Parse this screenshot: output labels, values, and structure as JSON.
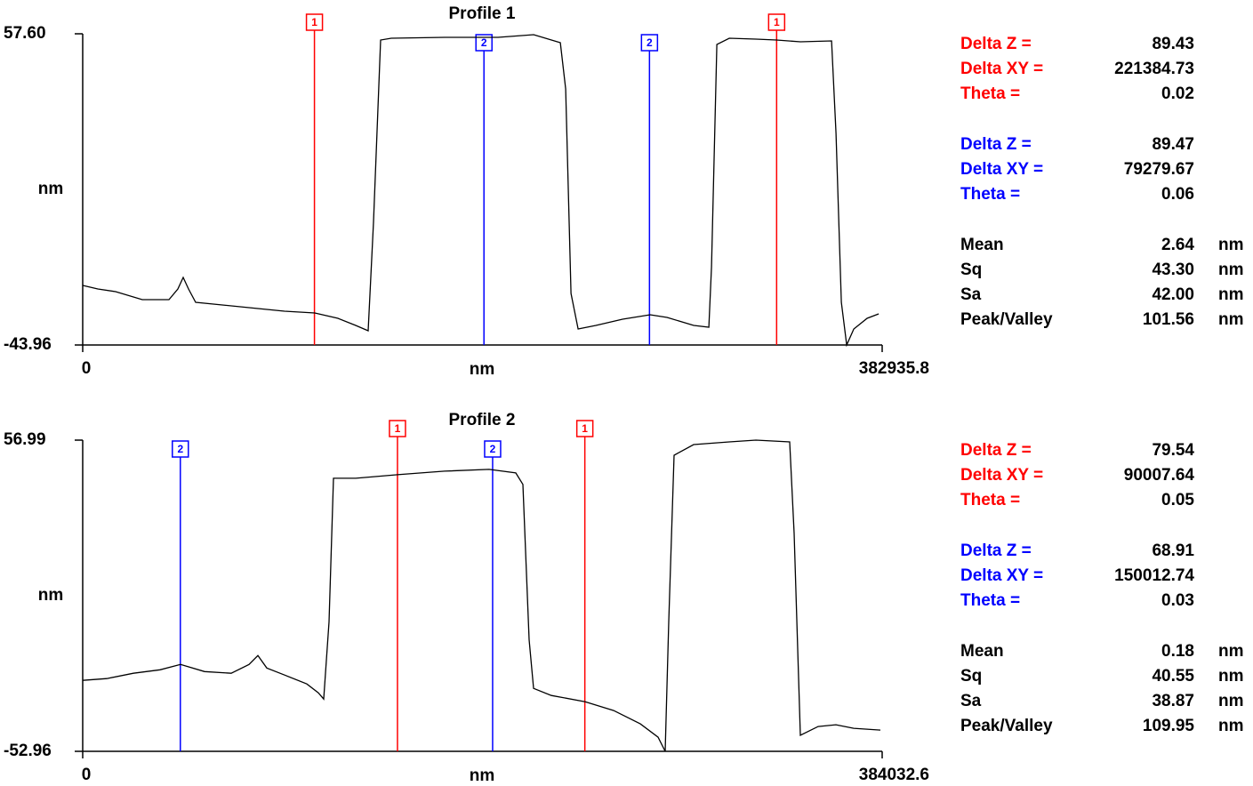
{
  "chart_data": [
    {
      "type": "line",
      "title": "Profile 1",
      "xlabel": "nm",
      "ylabel": "nm",
      "xlim": [
        0,
        382935.8
      ],
      "xticks": [
        0,
        382935.8
      ],
      "ylim": [
        -43.96,
        57.6
      ],
      "yticks": [
        {
          "value": -43.96,
          "label": "-43.96"
        },
        {
          "value": 57.6,
          "label": "57.60"
        }
      ],
      "x": [
        0,
        7242,
        15762,
        28542,
        41322,
        45582,
        48138,
        50694,
        54102,
        66882,
        83922,
        96702,
        111186,
        122262,
        130782,
        136746,
        139302,
        142710,
        147822,
        173382,
        198942,
        215982,
        228762,
        231318,
        233874,
        237282,
        245802,
        258582,
        271788,
        279882,
        292662,
        299904,
        301182,
        303738,
        309702,
        322482,
        332280,
        343782,
        358692,
        360822,
        363378,
        365934,
        369342,
        375732,
        381270
      ],
      "series": [
        {
          "color": "#000000",
          "values": [
            -24.52,
            -25.68,
            -26.55,
            -29.16,
            -29.16,
            -25.68,
            -21.91,
            -25.68,
            -30.03,
            -30.9,
            -32.06,
            -32.93,
            -33.51,
            -35.25,
            -37.58,
            -39.32,
            -3.92,
            55.57,
            56.15,
            56.44,
            56.44,
            57.31,
            54.7,
            39.61,
            -27.13,
            -38.74,
            -37.58,
            -35.54,
            -34.09,
            -34.96,
            -37.58,
            -38.16,
            -18.42,
            54.12,
            56.15,
            55.86,
            55.57,
            54.99,
            55.28,
            25.1,
            -30.03,
            -43.96,
            -38.74,
            -35.25,
            -33.8
          ]
        }
      ],
      "cursors": [
        {
          "label": "1",
          "color": "#ff0000",
          "x": [
            111000,
            332385
          ]
        },
        {
          "label": "2",
          "color": "#0000ff",
          "x": [
            192200,
            271480
          ]
        }
      ],
      "stats": [
        {
          "color": "#ff0000",
          "rows": [
            {
              "label": "Delta Z =",
              "value": "89.43"
            },
            {
              "label": "Delta XY =",
              "value": "221384.73"
            },
            {
              "label": "Theta =",
              "value": "0.02"
            }
          ]
        },
        {
          "color": "#0000ff",
          "rows": [
            {
              "label": "Delta Z =",
              "value": "89.47"
            },
            {
              "label": "Delta XY =",
              "value": "79279.67"
            },
            {
              "label": "Theta =",
              "value": "0.06"
            }
          ]
        },
        {
          "color": "#000000",
          "rows": [
            {
              "label": "Mean",
              "value": "2.64",
              "unit": "nm"
            },
            {
              "label": "Sq",
              "value": "43.30",
              "unit": "nm"
            },
            {
              "label": "Sa",
              "value": "42.00",
              "unit": "nm"
            },
            {
              "label": "Peak/Valley",
              "value": "101.56",
              "unit": "nm"
            }
          ]
        }
      ]
    },
    {
      "type": "line",
      "title": "Profile 2",
      "xlabel": "nm",
      "ylabel": "nm",
      "xlim": [
        0,
        384032.6
      ],
      "xticks": [
        0,
        384032.6
      ],
      "ylim": [
        -52.96,
        56.99
      ],
      "yticks": [
        -52.96,
        56.99
      ],
      "x": [
        0,
        11534,
        24349,
        37165,
        46990,
        58524,
        71339,
        79883,
        84154,
        88426,
        96970,
        107649,
        113203,
        115766,
        118329,
        120465,
        131144,
        151222,
        173862,
        195221,
        208037,
        211454,
        214444,
        216580,
        225124,
        241357,
        255026,
        267842,
        276385,
        279803,
        281512,
        284075,
        293473,
        310560,
        323375,
        339608,
        341744,
        344734,
        353278,
        361822,
        370365,
        383181
      ],
      "series": [
        {
          "color": "#000000",
          "values": [
            -27.9,
            -27.27,
            -25.39,
            -24.14,
            -22.26,
            -24.77,
            -25.39,
            -22.26,
            -19.13,
            -23.52,
            -26.02,
            -29.15,
            -32.29,
            -34.48,
            -7.23,
            43.52,
            43.52,
            44.77,
            46.03,
            46.65,
            45.4,
            41.33,
            -13.49,
            -30.72,
            -33.23,
            -35.42,
            -38.55,
            -43.25,
            -47.95,
            -52.96,
            -7.23,
            51.66,
            55.42,
            56.36,
            56.99,
            56.36,
            24.1,
            -47.32,
            -44.19,
            -43.56,
            -44.82,
            -45.44
          ]
        }
      ],
      "cursors": [
        {
          "label": "1",
          "color": "#ff0000",
          "x": [
            151200,
            241207.64
          ]
        },
        {
          "label": "2",
          "color": "#0000ff",
          "x": [
            46900,
            196912.74
          ]
        }
      ],
      "stats": [
        {
          "color": "#ff0000",
          "rows": [
            {
              "label": "Delta Z =",
              "value": "79.54"
            },
            {
              "label": "Delta XY =",
              "value": "90007.64"
            },
            {
              "label": "Theta =",
              "value": "0.05"
            }
          ]
        },
        {
          "color": "#0000ff",
          "rows": [
            {
              "label": "Delta Z =",
              "value": "68.91"
            },
            {
              "label": "Delta XY =",
              "value": "150012.74"
            },
            {
              "label": "Theta =",
              "value": "0.03"
            }
          ]
        },
        {
          "color": "#000000",
          "rows": [
            {
              "label": "Mean",
              "value": "0.18",
              "unit": "nm"
            },
            {
              "label": "Sq",
              "value": "40.55",
              "unit": "nm"
            },
            {
              "label": "Sa",
              "value": "38.87",
              "unit": "nm"
            },
            {
              "label": "Peak/Valley",
              "value": "109.95",
              "unit": "nm"
            }
          ]
        }
      ]
    }
  ]
}
